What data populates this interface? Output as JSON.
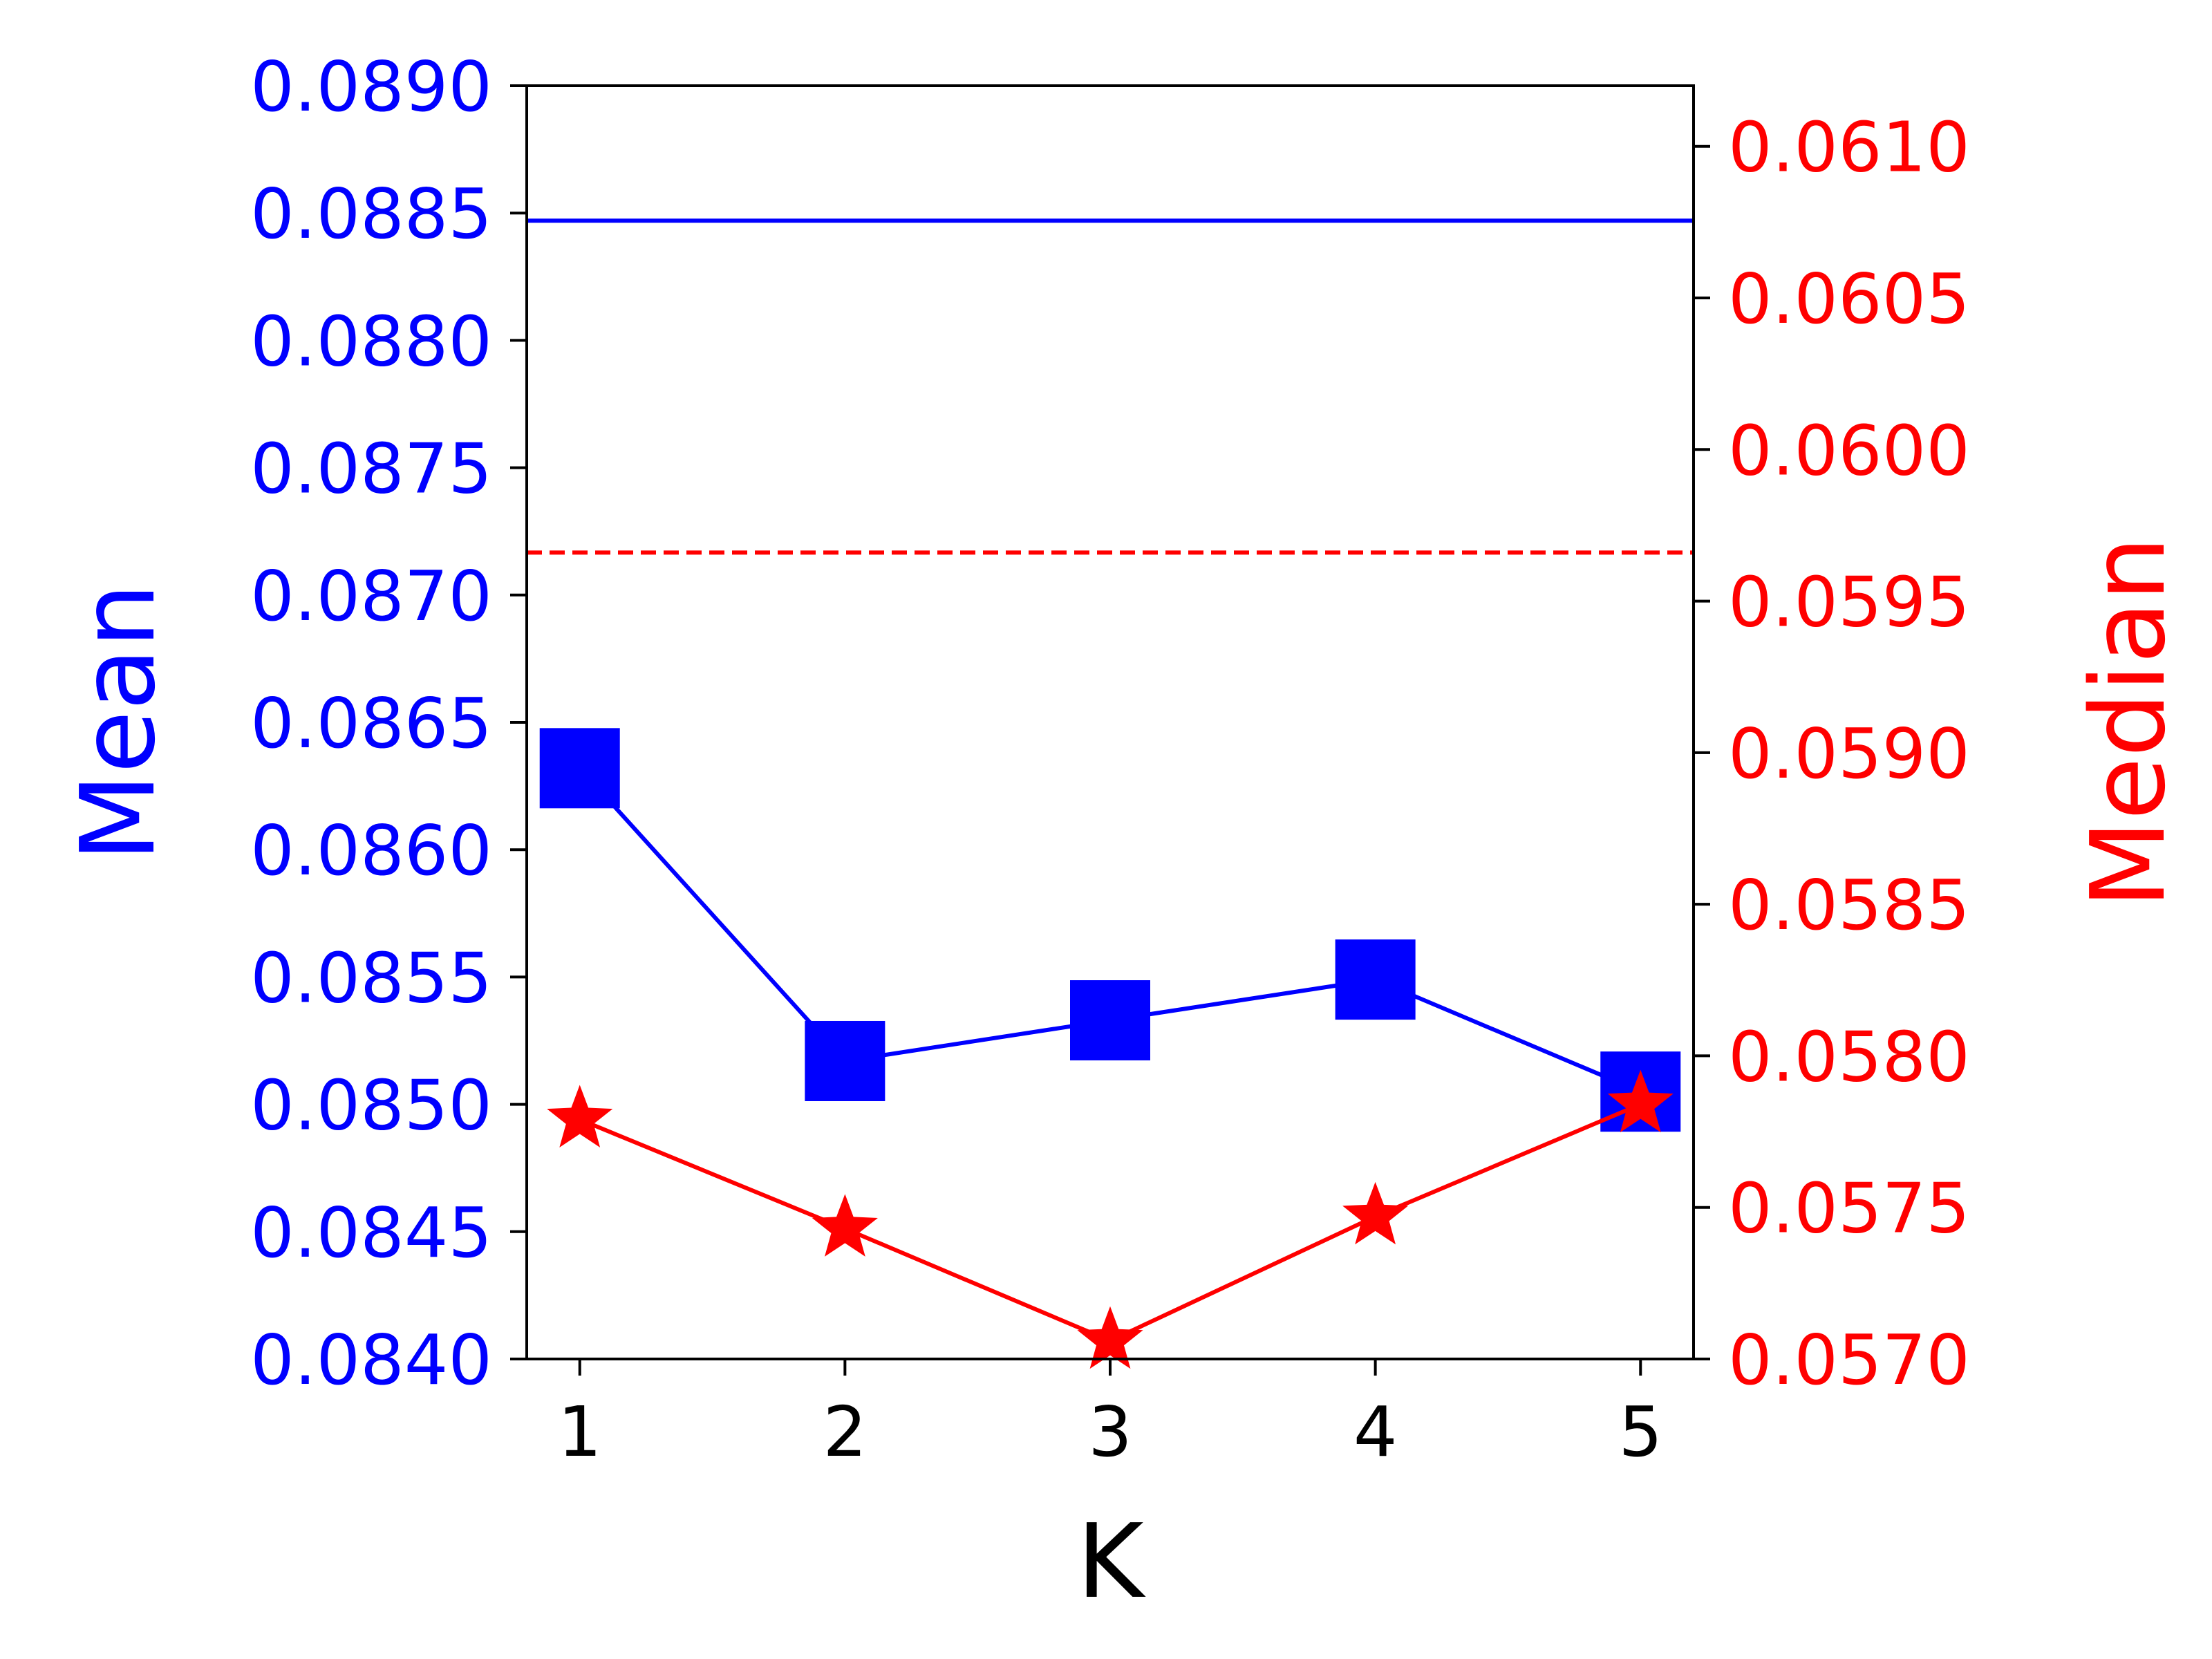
{
  "chart_data": {
    "type": "line",
    "x": [
      1,
      2,
      3,
      4,
      5
    ],
    "xlabel": "K",
    "xlim": [
      0.8,
      5.2
    ],
    "left_axis": {
      "label": "Mean",
      "color": "#0000ff",
      "ylim": [
        0.084,
        0.089
      ],
      "ticks": [
        "0.0840",
        "0.0845",
        "0.0850",
        "0.0855",
        "0.0860",
        "0.0865",
        "0.0870",
        "0.0875",
        "0.0880",
        "0.0885",
        "0.0890"
      ]
    },
    "right_axis": {
      "label": "Median",
      "color": "#ff0000",
      "ylim": [
        0.057,
        0.0612
      ],
      "ticks": [
        "0.0570",
        "0.0575",
        "0.0580",
        "0.0585",
        "0.0590",
        "0.0595",
        "0.0600",
        "0.0605",
        "0.0610"
      ]
    },
    "series": [
      {
        "axis": "left",
        "marker": "square",
        "color": "#0000ff",
        "values": [
          0.08632,
          0.08517,
          0.08533,
          0.08549,
          0.08505
        ]
      },
      {
        "axis": "right",
        "marker": "star",
        "color": "#ff0000",
        "values": [
          0.05779,
          0.05743,
          0.05706,
          0.05747,
          0.05784
        ]
      }
    ],
    "reference_lines": [
      {
        "axis": "left",
        "value": 0.08847,
        "style": "solid",
        "color": "#0000ff"
      },
      {
        "axis": "right",
        "value": 0.05966,
        "style": "dashed",
        "color": "#ff0000"
      }
    ],
    "grid": false,
    "legend": "none"
  }
}
